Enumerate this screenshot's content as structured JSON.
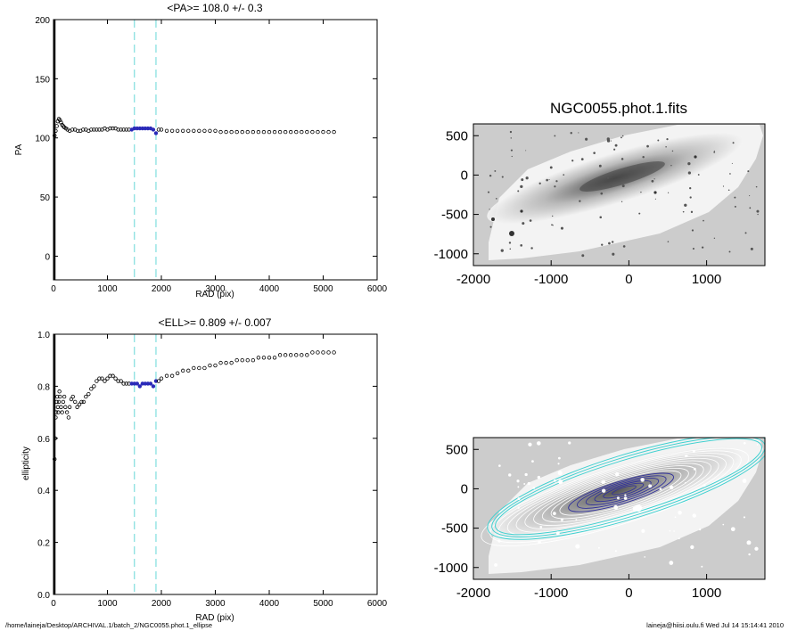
{
  "footer": {
    "path": "/home/laineja/Desktop/ARCHIVAL.1/batch_2/NGC0055.phot.1_ellipse",
    "stamp": "laineja@hiisi.oulu.fi  Wed Jul 14 15:14:41 2010"
  },
  "colors": {
    "points": "#000000",
    "highlight": "#2a2ab8",
    "dashed": "#7fdede",
    "image_bg": "#cccccc",
    "contour": "#ffffff",
    "outer_ellipse": "#3fd0d0",
    "inner_ellipse": "#30309a"
  },
  "chart_data": [
    {
      "type": "scatter",
      "title": "<PA>= 108.0 +/-   0.3",
      "xlabel": "RAD (pix)",
      "ylabel": "PA",
      "xlim": [
        0,
        6000
      ],
      "ylim": [
        -20,
        200
      ],
      "xticks": [
        "0",
        "1000",
        "2000",
        "3000",
        "4000",
        "5000",
        "6000"
      ],
      "yticks": [
        "0",
        "50",
        "100",
        "150",
        "200"
      ],
      "xtick_values": [
        0,
        1000,
        2000,
        3000,
        4000,
        5000,
        6000
      ],
      "ytick_values": [
        0,
        50,
        100,
        150,
        200
      ],
      "vlines": [
        1500,
        1900
      ],
      "highlight_range": [
        1450,
        1900
      ],
      "points": [
        [
          20,
          102
        ],
        [
          40,
          106
        ],
        [
          60,
          110
        ],
        [
          80,
          114
        ],
        [
          100,
          116
        ],
        [
          120,
          115
        ],
        [
          140,
          113
        ],
        [
          160,
          111
        ],
        [
          180,
          110
        ],
        [
          200,
          109
        ],
        [
          230,
          108
        ],
        [
          260,
          107
        ],
        [
          300,
          106
        ],
        [
          350,
          107
        ],
        [
          400,
          107
        ],
        [
          450,
          106
        ],
        [
          500,
          106
        ],
        [
          550,
          107
        ],
        [
          600,
          107
        ],
        [
          650,
          106
        ],
        [
          700,
          107
        ],
        [
          750,
          107
        ],
        [
          800,
          107
        ],
        [
          850,
          107
        ],
        [
          900,
          107
        ],
        [
          950,
          108
        ],
        [
          1000,
          107
        ],
        [
          1050,
          108
        ],
        [
          1100,
          108
        ],
        [
          1150,
          108
        ],
        [
          1200,
          107
        ],
        [
          1250,
          107
        ],
        [
          1300,
          107
        ],
        [
          1350,
          107
        ],
        [
          1400,
          107
        ],
        [
          1450,
          107
        ],
        [
          1500,
          108
        ],
        [
          1550,
          108
        ],
        [
          1600,
          108
        ],
        [
          1650,
          108
        ],
        [
          1700,
          108
        ],
        [
          1750,
          108
        ],
        [
          1800,
          108
        ],
        [
          1850,
          107
        ],
        [
          1900,
          104
        ],
        [
          1950,
          107
        ],
        [
          2000,
          107
        ],
        [
          2100,
          106
        ],
        [
          2200,
          106
        ],
        [
          2300,
          106
        ],
        [
          2400,
          106
        ],
        [
          2500,
          106
        ],
        [
          2600,
          106
        ],
        [
          2700,
          106
        ],
        [
          2800,
          106
        ],
        [
          2900,
          106
        ],
        [
          3000,
          106
        ],
        [
          3100,
          105
        ],
        [
          3200,
          105
        ],
        [
          3300,
          105
        ],
        [
          3400,
          105
        ],
        [
          3500,
          105
        ],
        [
          3600,
          105
        ],
        [
          3700,
          105
        ],
        [
          3800,
          105
        ],
        [
          3900,
          105
        ],
        [
          4000,
          105
        ],
        [
          4100,
          105
        ],
        [
          4200,
          105
        ],
        [
          4300,
          105
        ],
        [
          4400,
          105
        ],
        [
          4500,
          105
        ],
        [
          4600,
          105
        ],
        [
          4700,
          105
        ],
        [
          4800,
          105
        ],
        [
          4900,
          105
        ],
        [
          5000,
          105
        ],
        [
          5100,
          105
        ],
        [
          5200,
          105
        ]
      ]
    },
    {
      "type": "scatter",
      "title": "<ELL>= 0.809 +/-  0.007",
      "xlabel": "RAD (pix)",
      "ylabel": "ellipticity",
      "xlim": [
        0,
        6000
      ],
      "ylim": [
        0,
        1
      ],
      "xticks": [
        "0",
        "1000",
        "2000",
        "3000",
        "4000",
        "5000",
        "6000"
      ],
      "yticks": [
        "0.0",
        "0.2",
        "0.4",
        "0.6",
        "0.8",
        "1.0"
      ],
      "xtick_values": [
        0,
        1000,
        2000,
        3000,
        4000,
        5000,
        6000
      ],
      "ytick_values": [
        0,
        0.2,
        0.4,
        0.6,
        0.8,
        1.0
      ],
      "vlines": [
        1500,
        1900
      ],
      "highlight_range": [
        1450,
        1900
      ],
      "points": [
        [
          20,
          0.52
        ],
        [
          30,
          0.6
        ],
        [
          40,
          0.68
        ],
        [
          50,
          0.7
        ],
        [
          60,
          0.74
        ],
        [
          70,
          0.76
        ],
        [
          80,
          0.72
        ],
        [
          90,
          0.7
        ],
        [
          100,
          0.74
        ],
        [
          110,
          0.78
        ],
        [
          120,
          0.76
        ],
        [
          140,
          0.72
        ],
        [
          160,
          0.7
        ],
        [
          180,
          0.74
        ],
        [
          200,
          0.76
        ],
        [
          220,
          0.72
        ],
        [
          250,
          0.7
        ],
        [
          280,
          0.68
        ],
        [
          300,
          0.72
        ],
        [
          330,
          0.75
        ],
        [
          360,
          0.76
        ],
        [
          400,
          0.74
        ],
        [
          440,
          0.72
        ],
        [
          480,
          0.73
        ],
        [
          520,
          0.74
        ],
        [
          560,
          0.74
        ],
        [
          600,
          0.76
        ],
        [
          650,
          0.77
        ],
        [
          700,
          0.79
        ],
        [
          750,
          0.8
        ],
        [
          800,
          0.82
        ],
        [
          850,
          0.83
        ],
        [
          900,
          0.83
        ],
        [
          950,
          0.82
        ],
        [
          1000,
          0.83
        ],
        [
          1050,
          0.84
        ],
        [
          1100,
          0.84
        ],
        [
          1150,
          0.83
        ],
        [
          1200,
          0.82
        ],
        [
          1250,
          0.82
        ],
        [
          1300,
          0.81
        ],
        [
          1350,
          0.81
        ],
        [
          1400,
          0.81
        ],
        [
          1450,
          0.81
        ],
        [
          1500,
          0.81
        ],
        [
          1550,
          0.81
        ],
        [
          1600,
          0.8
        ],
        [
          1650,
          0.81
        ],
        [
          1700,
          0.81
        ],
        [
          1750,
          0.81
        ],
        [
          1800,
          0.81
        ],
        [
          1850,
          0.8
        ],
        [
          1900,
          0.82
        ],
        [
          1950,
          0.82
        ],
        [
          2000,
          0.83
        ],
        [
          2100,
          0.84
        ],
        [
          2200,
          0.84
        ],
        [
          2300,
          0.85
        ],
        [
          2400,
          0.86
        ],
        [
          2500,
          0.86
        ],
        [
          2600,
          0.87
        ],
        [
          2700,
          0.87
        ],
        [
          2800,
          0.87
        ],
        [
          2900,
          0.88
        ],
        [
          3000,
          0.88
        ],
        [
          3100,
          0.89
        ],
        [
          3200,
          0.89
        ],
        [
          3300,
          0.89
        ],
        [
          3400,
          0.9
        ],
        [
          3500,
          0.9
        ],
        [
          3600,
          0.9
        ],
        [
          3700,
          0.9
        ],
        [
          3800,
          0.91
        ],
        [
          3900,
          0.91
        ],
        [
          4000,
          0.91
        ],
        [
          4100,
          0.91
        ],
        [
          4200,
          0.92
        ],
        [
          4300,
          0.92
        ],
        [
          4400,
          0.92
        ],
        [
          4500,
          0.92
        ],
        [
          4600,
          0.92
        ],
        [
          4700,
          0.92
        ],
        [
          4800,
          0.93
        ],
        [
          4900,
          0.93
        ],
        [
          5000,
          0.93
        ],
        [
          5100,
          0.93
        ],
        [
          5200,
          0.93
        ]
      ]
    },
    {
      "type": "heatmap",
      "title": "NGC0055.phot.1.fits",
      "xlim": [
        -2000,
        1750
      ],
      "ylim": [
        -1150,
        650
      ],
      "xticks": [
        "-2000",
        "-1000",
        "0",
        "1000"
      ],
      "yticks": [
        "500",
        "0",
        "-500",
        "-1000"
      ],
      "xtick_values": [
        -2000,
        -1000,
        0,
        1000
      ],
      "ytick_values": [
        500,
        0,
        -500,
        -1000
      ]
    },
    {
      "type": "heatmap",
      "title": "",
      "xlim": [
        -2000,
        1750
      ],
      "ylim": [
        -1150,
        650
      ],
      "xticks": [
        "-2000",
        "-1000",
        "0",
        "1000"
      ],
      "yticks": [
        "500",
        "0",
        "-500",
        "-1000"
      ],
      "xtick_values": [
        -2000,
        -1000,
        0,
        1000
      ],
      "ytick_values": [
        500,
        0,
        -500,
        -1000
      ]
    }
  ]
}
